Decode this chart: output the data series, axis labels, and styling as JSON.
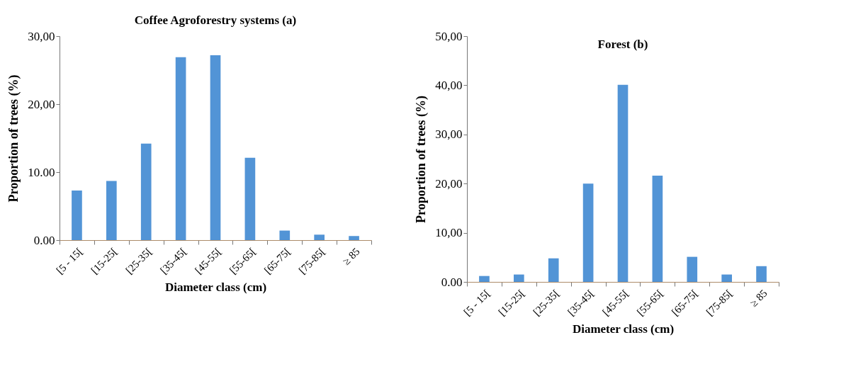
{
  "chart_data": [
    {
      "type": "bar",
      "title": "Coffee Agroforestry systems (a)",
      "xlabel": "Diameter class (cm)",
      "ylabel": "Proportion of trees (%)",
      "categories": [
        "[5 - 15[",
        "[15-25[",
        "[25-35[",
        "[35-45[",
        "[45-55[",
        "[55-65[",
        "[65-75[",
        "[75-85[",
        "≥ 85"
      ],
      "values": [
        7.3,
        8.7,
        14.2,
        26.9,
        27.2,
        12.1,
        1.4,
        0.8,
        0.6
      ],
      "color": "#5294d6",
      "ylim": [
        0,
        30
      ],
      "yticks": [
        {
          "value": 0,
          "label": "0.00"
        },
        {
          "value": 10,
          "label": "10.00"
        },
        {
          "value": 20,
          "label": "20,00"
        },
        {
          "value": 30,
          "label": "30,00"
        }
      ],
      "grid": false
    },
    {
      "type": "bar",
      "title": "Forest (b)",
      "xlabel": "Diameter class (cm)",
      "ylabel": "Proportion of trees (%)",
      "categories": [
        "[5 - 15[",
        "[15-25[",
        "[25-35[",
        "[35-45[",
        "[45-55[",
        "[55-65[",
        "[65-75[",
        "[75-85[",
        "≥ 85"
      ],
      "values": [
        1.2,
        1.5,
        4.8,
        20.0,
        40.1,
        21.6,
        5.1,
        1.5,
        3.2
      ],
      "color": "#5294d6",
      "ylim": [
        0,
        50
      ],
      "yticks": [
        {
          "value": 0,
          "label": "0.00"
        },
        {
          "value": 10,
          "label": "10,00"
        },
        {
          "value": 20,
          "label": "20,00"
        },
        {
          "value": 30,
          "label": "30,00"
        },
        {
          "value": 40,
          "label": "40,00"
        },
        {
          "value": 50,
          "label": "50,00"
        }
      ],
      "grid": false
    }
  ]
}
